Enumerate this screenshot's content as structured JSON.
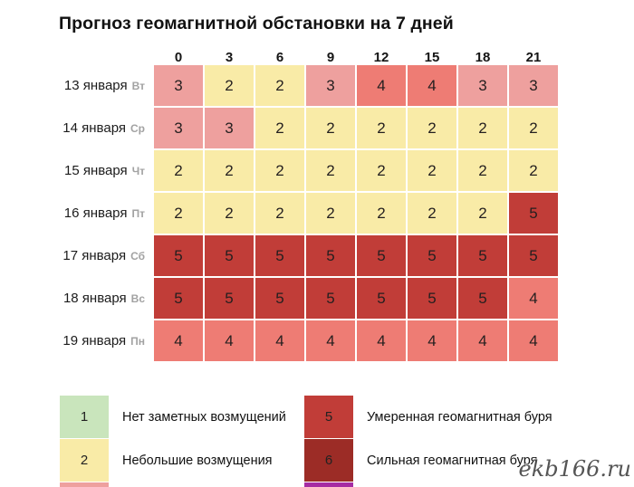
{
  "title": "Прогноз геомагнитной обстановки на 7 дней",
  "watermark": "ekb166.ru",
  "colors": {
    "level1": "#c9e5bc",
    "level2": "#f9eba7",
    "level3": "#eea09e",
    "level4": "#ee7c74",
    "level5": "#c13d38",
    "level6": "#9c2c26",
    "level7": "#a62ca3"
  },
  "table": {
    "hours": [
      "0",
      "3",
      "6",
      "9",
      "12",
      "15",
      "18",
      "21"
    ],
    "rows": [
      {
        "date": "13 января",
        "dow": "Вт",
        "values": [
          3,
          2,
          2,
          3,
          4,
          4,
          3,
          3
        ]
      },
      {
        "date": "14 января",
        "dow": "Ср",
        "values": [
          3,
          3,
          2,
          2,
          2,
          2,
          2,
          2
        ]
      },
      {
        "date": "15 января",
        "dow": "Чт",
        "values": [
          2,
          2,
          2,
          2,
          2,
          2,
          2,
          2
        ]
      },
      {
        "date": "16 января",
        "dow": "Пт",
        "values": [
          2,
          2,
          2,
          2,
          2,
          2,
          2,
          5
        ]
      },
      {
        "date": "17 января",
        "dow": "Сб",
        "values": [
          5,
          5,
          5,
          5,
          5,
          5,
          5,
          5
        ]
      },
      {
        "date": "18 января",
        "dow": "Вс",
        "values": [
          5,
          5,
          5,
          5,
          5,
          5,
          5,
          4
        ]
      },
      {
        "date": "19 января",
        "dow": "Пн",
        "values": [
          4,
          4,
          4,
          4,
          4,
          4,
          4,
          4
        ]
      }
    ]
  },
  "legend": {
    "left": [
      {
        "value": "1",
        "level": 1,
        "label": "Нет заметных возмущений"
      },
      {
        "value": "2",
        "level": 2,
        "label": "Небольшие возмущения"
      }
    ],
    "left_partial_level": 3,
    "right": [
      {
        "value": "5",
        "level": 5,
        "label": "Умеренная геомагнитная буря"
      },
      {
        "value": "6",
        "level": 6,
        "label": "Сильная геомагнитная буря"
      }
    ],
    "right_partial_level": 7
  },
  "chart_data": {
    "type": "heatmap",
    "title": "Прогноз геомагнитной обстановки на 7 дней",
    "x": [
      "0",
      "3",
      "6",
      "9",
      "12",
      "15",
      "18",
      "21"
    ],
    "y": [
      "13 января Вт",
      "14 января Ср",
      "15 января Чт",
      "16 января Пт",
      "17 января Сб",
      "18 января Вс",
      "19 января Пн"
    ],
    "values": [
      [
        3,
        2,
        2,
        3,
        4,
        4,
        3,
        3
      ],
      [
        3,
        3,
        2,
        2,
        2,
        2,
        2,
        2
      ],
      [
        2,
        2,
        2,
        2,
        2,
        2,
        2,
        2
      ],
      [
        2,
        2,
        2,
        2,
        2,
        2,
        2,
        5
      ],
      [
        5,
        5,
        5,
        5,
        5,
        5,
        5,
        5
      ],
      [
        5,
        5,
        5,
        5,
        5,
        5,
        5,
        4
      ],
      [
        4,
        4,
        4,
        4,
        4,
        4,
        4,
        4
      ]
    ],
    "value_range": [
      1,
      7
    ],
    "value_colors": {
      "1": "#c9e5bc",
      "2": "#f9eba7",
      "3": "#eea09e",
      "4": "#ee7c74",
      "5": "#c13d38",
      "6": "#9c2c26",
      "7": "#a62ca3"
    },
    "legend": [
      {
        "value": 1,
        "label": "Нет заметных возмущений"
      },
      {
        "value": 2,
        "label": "Небольшие возмущения"
      },
      {
        "value": 5,
        "label": "Умеренная геомагнитная буря"
      },
      {
        "value": 6,
        "label": "Сильная геомагнитная буря"
      }
    ],
    "grid": false,
    "legend_position": "bottom"
  }
}
